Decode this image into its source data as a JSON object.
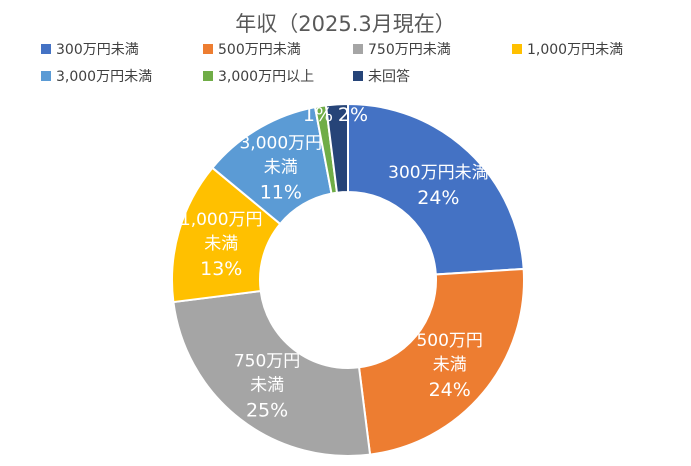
{
  "chart_data": {
    "type": "pie",
    "variant": "donut",
    "title": "年収（2025.3月現在）",
    "legend_position": "top",
    "categories": [
      "300万円未満",
      "500万円未満",
      "750万円未満",
      "1,000万円未満",
      "3,000万円未満",
      "3,000万円以上",
      "未回答"
    ],
    "values": [
      24,
      24,
      25,
      13,
      11,
      1,
      2
    ],
    "value_labels": [
      "24%",
      "24%",
      "25%",
      "13%",
      "11%",
      "1%",
      "2%"
    ],
    "slice_label_lines": [
      [
        "300万円未満"
      ],
      [
        "500万円",
        "未満"
      ],
      [
        "750万円",
        "未満"
      ],
      [
        "1,000万円",
        "未満"
      ],
      [
        "3,000万円",
        "未満"
      ],
      [],
      []
    ],
    "colors": [
      "#4472C4",
      "#ED7D31",
      "#A5A5A5",
      "#FFC000",
      "#5B9BD5",
      "#70AD47",
      "#264478"
    ]
  }
}
